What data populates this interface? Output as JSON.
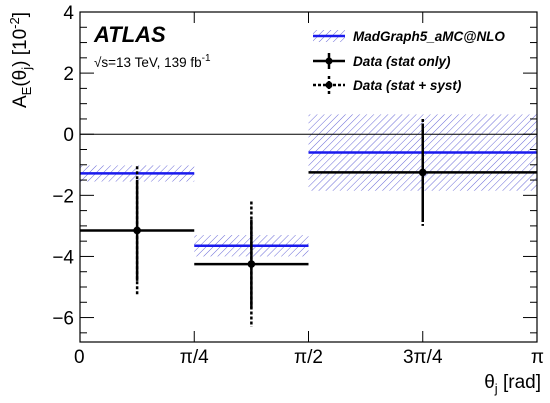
{
  "chart_data": {
    "type": "scatter",
    "experiment_label": "ATLAS",
    "energy_label": "√s=13 TeV, 139 fb",
    "energy_label_exp": "-1",
    "xlabel_main": "θ",
    "xlabel_sub": "j",
    "xlabel_unit": " [rad]",
    "ylabel_main": "A",
    "ylabel_sub": "E",
    "ylabel_mid": "(θ",
    "ylabel_sub2": "j",
    "ylabel_end": ") [10",
    "ylabel_exp": "-2",
    "ylabel_close": "]",
    "xlim": [
      0,
      3.14159
    ],
    "ylim": [
      -6.8,
      4
    ],
    "x_ticks": [
      {
        "value": 0,
        "label": "0"
      },
      {
        "value": 0.785398,
        "label": "π/4"
      },
      {
        "value": 1.570796,
        "label": "π/2"
      },
      {
        "value": 2.356194,
        "label": "3π/4"
      },
      {
        "value": 3.141593,
        "label": "π"
      }
    ],
    "y_ticks": [
      {
        "value": 4,
        "label": "4"
      },
      {
        "value": 2,
        "label": "2"
      },
      {
        "value": 0,
        "label": "0"
      },
      {
        "value": -2,
        "label": "−2"
      },
      {
        "value": -4,
        "label": "−4"
      },
      {
        "value": -6,
        "label": "−6"
      }
    ],
    "bins": [
      [
        0,
        0.785398
      ],
      [
        0.785398,
        1.570796
      ],
      [
        1.570796,
        3.141593
      ]
    ],
    "series": [
      {
        "name": "MadGraph5_aMC@NLO",
        "color": "#1a1aee",
        "values": [
          -1.28,
          -3.65,
          -0.6
        ],
        "band_lo": [
          -1.55,
          -4.0,
          -1.85
        ],
        "band_hi": [
          -1.02,
          -3.3,
          0.65
        ]
      },
      {
        "name": "Data (stat only)",
        "color": "#000000",
        "x": [
          0.3927,
          1.1781,
          2.3562
        ],
        "values": [
          -3.15,
          -4.25,
          -1.25
        ],
        "err_stat": [
          1.65,
          1.45,
          1.6
        ]
      },
      {
        "name": "Data (stat + syst)",
        "color": "#000000",
        "x": [
          0.3927,
          1.1781,
          2.3562
        ],
        "values": [
          -3.15,
          -4.25,
          -1.25
        ],
        "err_total": [
          2.1,
          2.05,
          1.75
        ]
      }
    ]
  }
}
